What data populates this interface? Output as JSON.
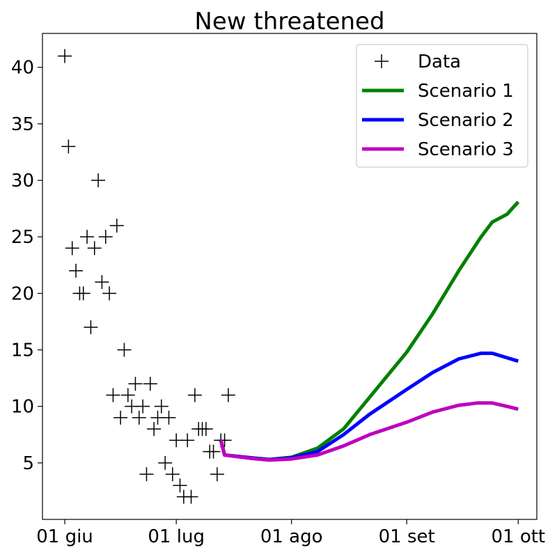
{
  "chart_data": {
    "type": "line",
    "title": "New threatened",
    "xlabel": "",
    "ylabel": "",
    "x_ticks": [
      "01 giu",
      "01 lug",
      "01 ago",
      "01 set",
      "01 ott"
    ],
    "x_tick_dates": [
      "2020-06-01",
      "2020-07-01",
      "2020-08-01",
      "2020-09-01",
      "2020-10-01"
    ],
    "xlim": [
      "2020-05-26",
      "2020-10-06"
    ],
    "ylim": [
      0,
      43
    ],
    "y_ticks": [
      5,
      10,
      15,
      20,
      25,
      30,
      35,
      40
    ],
    "grid": false,
    "legend_position": "top-right",
    "series": [
      {
        "name": "Data",
        "style": "marker-plus",
        "color": "#000000",
        "points": [
          [
            "2020-06-01",
            41
          ],
          [
            "2020-06-02",
            33
          ],
          [
            "2020-06-03",
            24
          ],
          [
            "2020-06-04",
            22
          ],
          [
            "2020-06-05",
            20
          ],
          [
            "2020-06-06",
            20
          ],
          [
            "2020-06-07",
            25
          ],
          [
            "2020-06-08",
            17
          ],
          [
            "2020-06-09",
            24
          ],
          [
            "2020-06-10",
            30
          ],
          [
            "2020-06-11",
            21
          ],
          [
            "2020-06-12",
            25
          ],
          [
            "2020-06-13",
            20
          ],
          [
            "2020-06-14",
            11
          ],
          [
            "2020-06-15",
            26
          ],
          [
            "2020-06-16",
            9
          ],
          [
            "2020-06-17",
            15
          ],
          [
            "2020-06-18",
            11
          ],
          [
            "2020-06-19",
            10
          ],
          [
            "2020-06-20",
            12
          ],
          [
            "2020-06-21",
            9
          ],
          [
            "2020-06-22",
            10
          ],
          [
            "2020-06-23",
            4
          ],
          [
            "2020-06-24",
            12
          ],
          [
            "2020-06-25",
            8
          ],
          [
            "2020-06-26",
            9
          ],
          [
            "2020-06-27",
            10
          ],
          [
            "2020-06-28",
            5
          ],
          [
            "2020-06-29",
            9
          ],
          [
            "2020-06-30",
            4
          ],
          [
            "2020-07-01",
            7
          ],
          [
            "2020-07-02",
            3
          ],
          [
            "2020-07-03",
            2
          ],
          [
            "2020-07-04",
            7
          ],
          [
            "2020-07-05",
            2
          ],
          [
            "2020-07-06",
            11
          ],
          [
            "2020-07-07",
            8
          ],
          [
            "2020-07-08",
            8
          ],
          [
            "2020-07-09",
            8
          ],
          [
            "2020-07-10",
            6
          ],
          [
            "2020-07-11",
            6
          ],
          [
            "2020-07-12",
            4
          ],
          [
            "2020-07-13",
            7
          ],
          [
            "2020-07-14",
            7
          ],
          [
            "2020-07-15",
            11
          ]
        ]
      },
      {
        "name": "Scenario 1",
        "style": "line",
        "color": "#008000",
        "points": [
          [
            "2020-07-13",
            7.0
          ],
          [
            "2020-07-14",
            5.7
          ],
          [
            "2020-07-21",
            5.45
          ],
          [
            "2020-07-26",
            5.3
          ],
          [
            "2020-08-01",
            5.5
          ],
          [
            "2020-08-08",
            6.3
          ],
          [
            "2020-08-15",
            8.0
          ],
          [
            "2020-08-22",
            10.8
          ],
          [
            "2020-09-01",
            14.8
          ],
          [
            "2020-09-08",
            18.2
          ],
          [
            "2020-09-15",
            22.0
          ],
          [
            "2020-09-21",
            25.0
          ],
          [
            "2020-09-24",
            26.3
          ],
          [
            "2020-09-28",
            27.0
          ],
          [
            "2020-10-01",
            28.1
          ]
        ]
      },
      {
        "name": "Scenario 2",
        "style": "line",
        "color": "#0000ff",
        "points": [
          [
            "2020-07-13",
            7.0
          ],
          [
            "2020-07-14",
            5.7
          ],
          [
            "2020-07-21",
            5.45
          ],
          [
            "2020-07-26",
            5.3
          ],
          [
            "2020-08-01",
            5.45
          ],
          [
            "2020-08-08",
            6.0
          ],
          [
            "2020-08-15",
            7.5
          ],
          [
            "2020-08-22",
            9.3
          ],
          [
            "2020-09-01",
            11.5
          ],
          [
            "2020-09-08",
            13.0
          ],
          [
            "2020-09-15",
            14.2
          ],
          [
            "2020-09-21",
            14.7
          ],
          [
            "2020-09-24",
            14.7
          ],
          [
            "2020-09-28",
            14.3
          ],
          [
            "2020-10-01",
            14.0
          ]
        ]
      },
      {
        "name": "Scenario 3",
        "style": "line",
        "color": "#bf00bf",
        "points": [
          [
            "2020-07-13",
            7.0
          ],
          [
            "2020-07-14",
            5.7
          ],
          [
            "2020-07-21",
            5.4
          ],
          [
            "2020-07-26",
            5.25
          ],
          [
            "2020-08-01",
            5.35
          ],
          [
            "2020-08-08",
            5.7
          ],
          [
            "2020-08-15",
            6.5
          ],
          [
            "2020-08-22",
            7.5
          ],
          [
            "2020-09-01",
            8.6
          ],
          [
            "2020-09-08",
            9.5
          ],
          [
            "2020-09-15",
            10.1
          ],
          [
            "2020-09-20",
            10.3
          ],
          [
            "2020-09-24",
            10.3
          ],
          [
            "2020-09-28",
            10.0
          ],
          [
            "2020-10-01",
            9.75
          ]
        ]
      }
    ]
  }
}
